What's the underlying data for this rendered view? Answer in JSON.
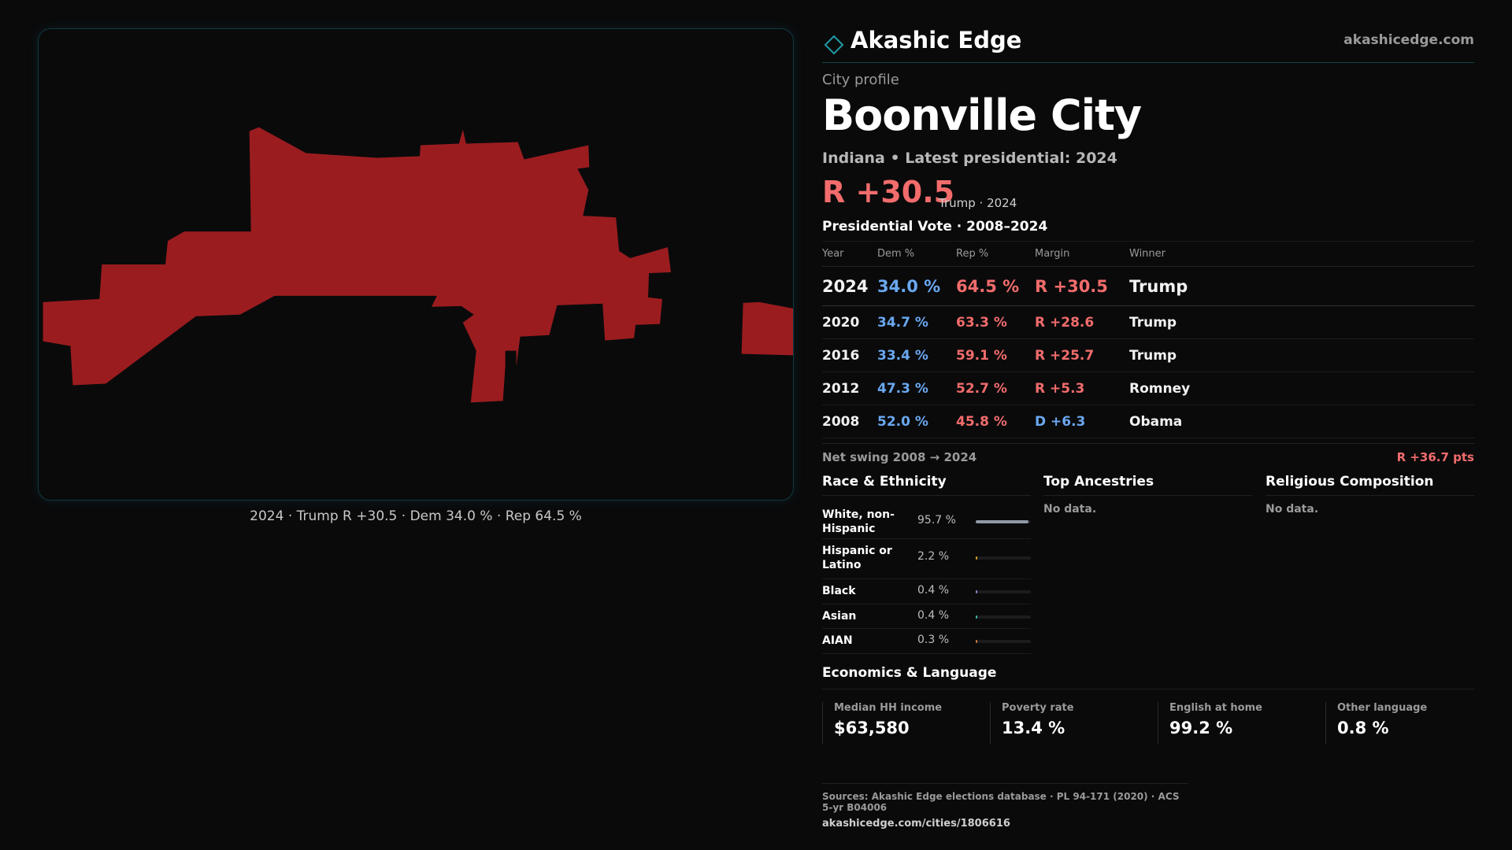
{
  "map": {
    "fill_color": "#9b1c1f",
    "caption": "2024 · Trump R +30.5 · Dem 34.0 % · Rep 64.5 %"
  },
  "brand": {
    "name": "Akashic Edge",
    "url": "akashicedge.com",
    "logo_icon": "diamond-outline-icon",
    "accent_color": "#1e9aa6"
  },
  "profile": {
    "kicker": "City profile",
    "city_name": "Boonville City",
    "subline": "Indiana • Latest presidential: 2024",
    "headline_margin": "R +30.5",
    "headline_note": "Trump · 2024"
  },
  "presidential": {
    "title": "Presidential Vote · 2008–2024",
    "headers": {
      "year": "Year",
      "dem": "Dem %",
      "rep": "Rep %",
      "margin": "Margin",
      "winner": "Winner"
    },
    "rows": [
      {
        "year": "2024",
        "dem": "34.0 %",
        "rep": "64.5 %",
        "margin": "R +30.5",
        "party": "R",
        "winner": "Trump"
      },
      {
        "year": "2020",
        "dem": "34.7 %",
        "rep": "63.3 %",
        "margin": "R +28.6",
        "party": "R",
        "winner": "Trump"
      },
      {
        "year": "2016",
        "dem": "33.4 %",
        "rep": "59.1 %",
        "margin": "R +25.7",
        "party": "R",
        "winner": "Trump"
      },
      {
        "year": "2012",
        "dem": "47.3 %",
        "rep": "52.7 %",
        "margin": "R +5.3",
        "party": "R",
        "winner": "Romney"
      },
      {
        "year": "2008",
        "dem": "52.0 %",
        "rep": "45.8 %",
        "margin": "D +6.3",
        "party": "D",
        "winner": "Obama"
      }
    ],
    "swing_label": "Net swing 2008 → 2024",
    "swing_value": "R +36.7 pts"
  },
  "race": {
    "title": "Race & Ethnicity",
    "items": [
      {
        "label": "White, non-Hispanic",
        "value": "95.7 %",
        "share": 0.957,
        "color": "#8f9aa8"
      },
      {
        "label": "Hispanic or Latino",
        "value": "2.2 %",
        "share": 0.022,
        "color": "#e0a020"
      },
      {
        "label": "Black",
        "value": "0.4 %",
        "share": 0.004,
        "color": "#9a7fd0"
      },
      {
        "label": "Asian",
        "value": "0.4 %",
        "share": 0.004,
        "color": "#3fb6a0"
      },
      {
        "label": "AIAN",
        "value": "0.3 %",
        "share": 0.003,
        "color": "#d07a3a"
      }
    ]
  },
  "ancestry": {
    "title": "Top Ancestries",
    "empty": "No data."
  },
  "religion": {
    "title": "Religious Composition",
    "empty": "No data."
  },
  "economics": {
    "title": "Economics & Language",
    "cells": [
      {
        "label": "Median HH income",
        "value": "$63,580"
      },
      {
        "label": "Poverty rate",
        "value": "13.4 %"
      },
      {
        "label": "English at home",
        "value": "99.2 %"
      },
      {
        "label": "Other language",
        "value": "0.8 %"
      }
    ]
  },
  "sources": {
    "text": "Sources: Akashic Edge elections database · PL 94-171 (2020) · ACS 5-yr B04006",
    "url": "akashicedge.com/cities/1806616"
  }
}
